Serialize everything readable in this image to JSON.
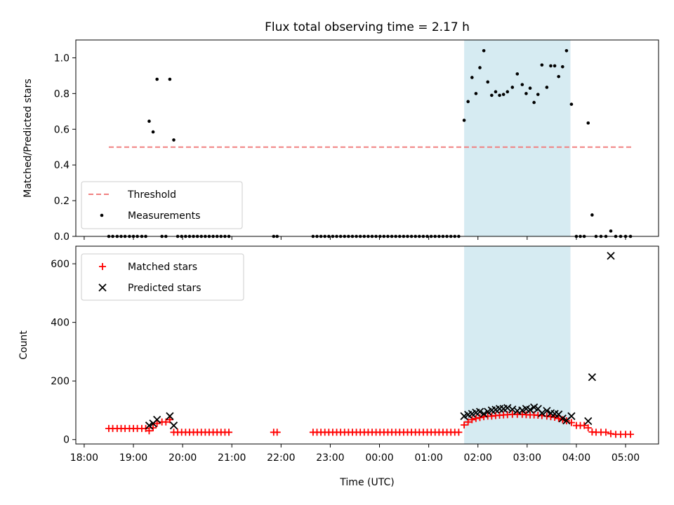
{
  "chart_data": [
    {
      "type": "scatter",
      "title": "Flux total observing time = 2.17 h",
      "xlabel": "",
      "ylabel": "Matched/Predicted stars",
      "xlim": [
        17.83,
        29.67
      ],
      "ylim": [
        0,
        1.1
      ],
      "yticks": [
        0.0,
        0.2,
        0.4,
        0.6,
        0.8,
        1.0
      ],
      "ytick_labels": [
        "0.0",
        "0.2",
        "0.4",
        "0.6",
        "0.8",
        "1.0"
      ],
      "grid": false,
      "legend_placement": "lower-left",
      "shaded_region": {
        "x": [
          25.72,
          27.88
        ],
        "color": "#add8e6"
      },
      "threshold": {
        "name": "Threshold",
        "value": 0.5,
        "x": [
          18.5,
          29.15
        ],
        "color": "#f08080"
      },
      "series": [
        {
          "name": "Measurements",
          "color": "#000000",
          "points": [
            [
              18.5,
              0
            ],
            [
              18.58,
              0
            ],
            [
              18.67,
              0
            ],
            [
              18.75,
              0
            ],
            [
              18.83,
              0
            ],
            [
              18.92,
              0
            ],
            [
              19.0,
              0
            ],
            [
              19.08,
              0
            ],
            [
              19.17,
              0
            ],
            [
              19.25,
              0
            ],
            [
              19.32,
              0.645
            ],
            [
              19.4,
              0.585
            ],
            [
              19.48,
              0.88
            ],
            [
              19.58,
              0
            ],
            [
              19.66,
              0
            ],
            [
              19.74,
              0.88
            ],
            [
              19.82,
              0.54
            ],
            [
              19.9,
              0
            ],
            [
              19.98,
              0
            ],
            [
              20.06,
              0
            ],
            [
              20.14,
              0
            ],
            [
              20.22,
              0
            ],
            [
              20.3,
              0
            ],
            [
              20.38,
              0
            ],
            [
              20.46,
              0
            ],
            [
              20.54,
              0
            ],
            [
              20.62,
              0
            ],
            [
              20.7,
              0
            ],
            [
              20.78,
              0
            ],
            [
              20.86,
              0
            ],
            [
              20.94,
              0
            ],
            [
              21.85,
              0
            ],
            [
              21.92,
              0
            ],
            [
              22.65,
              0
            ],
            [
              22.73,
              0
            ],
            [
              22.81,
              0
            ],
            [
              22.89,
              0
            ],
            [
              22.97,
              0
            ],
            [
              23.05,
              0
            ],
            [
              23.13,
              0
            ],
            [
              23.21,
              0
            ],
            [
              23.29,
              0
            ],
            [
              23.37,
              0
            ],
            [
              23.45,
              0
            ],
            [
              23.53,
              0
            ],
            [
              23.61,
              0
            ],
            [
              23.69,
              0
            ],
            [
              23.77,
              0
            ],
            [
              23.85,
              0
            ],
            [
              23.93,
              0
            ],
            [
              24.01,
              0
            ],
            [
              24.09,
              0
            ],
            [
              24.17,
              0
            ],
            [
              24.25,
              0
            ],
            [
              24.33,
              0
            ],
            [
              24.41,
              0
            ],
            [
              24.49,
              0
            ],
            [
              24.57,
              0
            ],
            [
              24.65,
              0
            ],
            [
              24.73,
              0
            ],
            [
              24.81,
              0
            ],
            [
              24.89,
              0
            ],
            [
              24.97,
              0
            ],
            [
              25.05,
              0
            ],
            [
              25.13,
              0
            ],
            [
              25.21,
              0
            ],
            [
              25.29,
              0
            ],
            [
              25.37,
              0
            ],
            [
              25.45,
              0
            ],
            [
              25.53,
              0
            ],
            [
              25.61,
              0
            ],
            [
              25.72,
              0.65
            ],
            [
              25.8,
              0.755
            ],
            [
              25.88,
              0.89
            ],
            [
              25.96,
              0.8
            ],
            [
              26.04,
              0.945
            ],
            [
              26.12,
              1.04
            ],
            [
              26.2,
              0.865
            ],
            [
              26.28,
              0.79
            ],
            [
              26.36,
              0.81
            ],
            [
              26.44,
              0.79
            ],
            [
              26.52,
              0.795
            ],
            [
              26.6,
              0.81
            ],
            [
              26.7,
              0.835
            ],
            [
              26.8,
              0.91
            ],
            [
              26.9,
              0.85
            ],
            [
              26.98,
              0.8
            ],
            [
              27.06,
              0.83
            ],
            [
              27.14,
              0.75
            ],
            [
              27.22,
              0.795
            ],
            [
              27.3,
              0.96
            ],
            [
              27.4,
              0.835
            ],
            [
              27.48,
              0.955
            ],
            [
              27.56,
              0.955
            ],
            [
              27.64,
              0.895
            ],
            [
              27.72,
              0.95
            ],
            [
              27.8,
              1.04
            ],
            [
              27.9,
              0.74
            ],
            [
              28.0,
              0
            ],
            [
              28.08,
              0
            ],
            [
              28.16,
              0
            ],
            [
              28.24,
              0.635
            ],
            [
              28.32,
              0.12
            ],
            [
              28.4,
              0
            ],
            [
              28.5,
              0
            ],
            [
              28.6,
              0
            ],
            [
              28.7,
              0.03
            ],
            [
              28.8,
              0
            ],
            [
              28.9,
              0
            ],
            [
              29.0,
              0
            ],
            [
              29.1,
              0
            ]
          ]
        }
      ]
    },
    {
      "type": "scatter",
      "title": "",
      "xlabel": "Time (UTC)",
      "ylabel": "Count",
      "xlim": [
        17.83,
        29.67
      ],
      "ylim": [
        -15,
        660
      ],
      "yticks": [
        0,
        200,
        400,
        600
      ],
      "ytick_labels": [
        "0",
        "200",
        "400",
        "600"
      ],
      "xticks": [
        18,
        19,
        20,
        21,
        22,
        23,
        24,
        25,
        26,
        27,
        28,
        29
      ],
      "xtick_labels": [
        "18:00",
        "19:00",
        "20:00",
        "21:00",
        "22:00",
        "23:00",
        "00:00",
        "01:00",
        "02:00",
        "03:00",
        "04:00",
        "05:00"
      ],
      "grid": false,
      "legend_placement": "upper-left",
      "shaded_region": {
        "x": [
          25.72,
          27.88
        ],
        "color": "#add8e6"
      },
      "series": [
        {
          "name": "Matched stars",
          "marker": "plus",
          "color": "#ff0000",
          "points": [
            [
              18.5,
              38
            ],
            [
              18.58,
              38
            ],
            [
              18.67,
              38
            ],
            [
              18.75,
              38
            ],
            [
              18.83,
              38
            ],
            [
              18.92,
              38
            ],
            [
              19.0,
              38
            ],
            [
              19.08,
              38
            ],
            [
              19.17,
              38
            ],
            [
              19.25,
              38
            ],
            [
              19.32,
              30
            ],
            [
              19.4,
              40
            ],
            [
              19.48,
              55
            ],
            [
              19.58,
              60
            ],
            [
              19.66,
              60
            ],
            [
              19.74,
              68
            ],
            [
              19.82,
              25
            ],
            [
              19.9,
              25
            ],
            [
              19.98,
              25
            ],
            [
              20.06,
              25
            ],
            [
              20.14,
              25
            ],
            [
              20.22,
              25
            ],
            [
              20.3,
              25
            ],
            [
              20.38,
              25
            ],
            [
              20.46,
              25
            ],
            [
              20.54,
              25
            ],
            [
              20.62,
              25
            ],
            [
              20.7,
              25
            ],
            [
              20.78,
              25
            ],
            [
              20.86,
              25
            ],
            [
              20.94,
              25
            ],
            [
              21.85,
              25
            ],
            [
              21.92,
              25
            ],
            [
              22.65,
              25
            ],
            [
              22.73,
              25
            ],
            [
              22.81,
              25
            ],
            [
              22.89,
              25
            ],
            [
              22.97,
              25
            ],
            [
              23.05,
              25
            ],
            [
              23.13,
              25
            ],
            [
              23.21,
              25
            ],
            [
              23.29,
              25
            ],
            [
              23.37,
              25
            ],
            [
              23.45,
              25
            ],
            [
              23.53,
              25
            ],
            [
              23.61,
              25
            ],
            [
              23.69,
              25
            ],
            [
              23.77,
              25
            ],
            [
              23.85,
              25
            ],
            [
              23.93,
              25
            ],
            [
              24.01,
              25
            ],
            [
              24.09,
              25
            ],
            [
              24.17,
              25
            ],
            [
              24.25,
              25
            ],
            [
              24.33,
              25
            ],
            [
              24.41,
              25
            ],
            [
              24.49,
              25
            ],
            [
              24.57,
              25
            ],
            [
              24.65,
              25
            ],
            [
              24.73,
              25
            ],
            [
              24.81,
              25
            ],
            [
              24.89,
              25
            ],
            [
              24.97,
              25
            ],
            [
              25.05,
              25
            ],
            [
              25.13,
              25
            ],
            [
              25.21,
              25
            ],
            [
              25.29,
              25
            ],
            [
              25.37,
              25
            ],
            [
              25.45,
              25
            ],
            [
              25.53,
              25
            ],
            [
              25.61,
              25
            ],
            [
              25.72,
              50
            ],
            [
              25.8,
              60
            ],
            [
              25.88,
              68
            ],
            [
              25.96,
              72
            ],
            [
              26.04,
              75
            ],
            [
              26.12,
              78
            ],
            [
              26.2,
              80
            ],
            [
              26.28,
              80
            ],
            [
              26.36,
              82
            ],
            [
              26.44,
              83
            ],
            [
              26.52,
              84
            ],
            [
              26.6,
              85
            ],
            [
              26.7,
              86
            ],
            [
              26.8,
              86
            ],
            [
              26.9,
              86
            ],
            [
              26.98,
              85
            ],
            [
              27.06,
              84
            ],
            [
              27.14,
              84
            ],
            [
              27.22,
              83
            ],
            [
              27.3,
              82
            ],
            [
              27.4,
              80
            ],
            [
              27.48,
              78
            ],
            [
              27.56,
              76
            ],
            [
              27.64,
              72
            ],
            [
              27.72,
              68
            ],
            [
              27.8,
              64
            ],
            [
              27.9,
              58
            ],
            [
              28.0,
              48
            ],
            [
              28.08,
              48
            ],
            [
              28.16,
              48
            ],
            [
              28.24,
              40
            ],
            [
              28.32,
              26
            ],
            [
              28.4,
              25
            ],
            [
              28.5,
              25
            ],
            [
              28.6,
              25
            ],
            [
              28.7,
              20
            ],
            [
              28.8,
              18
            ],
            [
              28.9,
              18
            ],
            [
              29.0,
              18
            ],
            [
              29.1,
              18
            ]
          ]
        },
        {
          "name": "Predicted stars",
          "marker": "x",
          "color": "#000000",
          "points": [
            [
              19.32,
              48
            ],
            [
              19.4,
              55
            ],
            [
              19.48,
              68
            ],
            [
              19.74,
              80
            ],
            [
              19.82,
              48
            ],
            [
              25.72,
              80
            ],
            [
              25.8,
              85
            ],
            [
              25.88,
              88
            ],
            [
              25.96,
              92
            ],
            [
              26.04,
              95
            ],
            [
              26.12,
              88
            ],
            [
              26.2,
              95
            ],
            [
              26.28,
              100
            ],
            [
              26.36,
              102
            ],
            [
              26.44,
              105
            ],
            [
              26.52,
              105
            ],
            [
              26.6,
              108
            ],
            [
              26.7,
              103
            ],
            [
              26.8,
              98
            ],
            [
              26.9,
              100
            ],
            [
              26.98,
              105
            ],
            [
              27.06,
              102
            ],
            [
              27.14,
              110
            ],
            [
              27.22,
              105
            ],
            [
              27.3,
              90
            ],
            [
              27.4,
              98
            ],
            [
              27.48,
              90
            ],
            [
              27.56,
              88
            ],
            [
              27.64,
              86
            ],
            [
              27.72,
              72
            ],
            [
              27.8,
              65
            ],
            [
              27.9,
              80
            ],
            [
              28.24,
              63
            ],
            [
              28.32,
              213
            ],
            [
              28.7,
              627
            ]
          ]
        }
      ]
    }
  ]
}
